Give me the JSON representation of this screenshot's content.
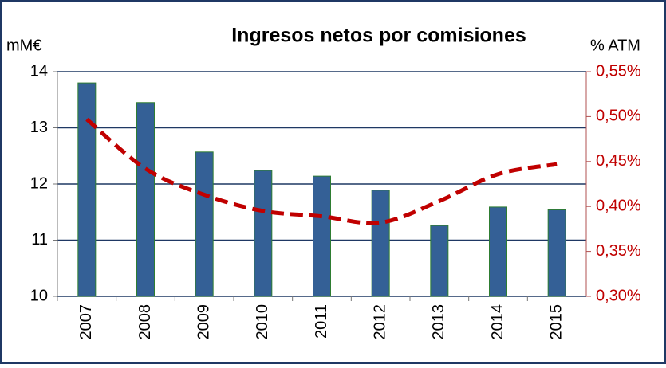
{
  "chart_data": {
    "type": "bar_line",
    "title": "Ingresos netos por comisiones",
    "y_label": "mM€",
    "y2_label": "% ATM",
    "categories": [
      "2007",
      "2008",
      "2009",
      "2010",
      "2011",
      "2012",
      "2013",
      "2014",
      "2015"
    ],
    "series": [
      {
        "name": "Ingresos netos por comisiones",
        "type": "bar",
        "color": "#346096",
        "values": [
          13.8,
          13.45,
          12.57,
          12.24,
          12.14,
          11.89,
          11.26,
          11.59,
          11.54
        ]
      },
      {
        "name": "% ATM",
        "type": "line",
        "axis": "y2",
        "color": "#c00000",
        "values": [
          0.497,
          0.442,
          0.413,
          0.395,
          0.389,
          0.382,
          0.406,
          0.436,
          0.447
        ]
      }
    ],
    "ylim": [
      10,
      14
    ],
    "yticks": [
      10,
      11,
      12,
      13,
      14
    ],
    "y2lim": [
      0.3,
      0.55
    ],
    "y2ticks": [
      {
        "value": 0.3,
        "label": "0,30%"
      },
      {
        "value": 0.35,
        "label": "0,35%"
      },
      {
        "value": 0.4,
        "label": "0,40%"
      },
      {
        "value": 0.45,
        "label": "0,45%"
      },
      {
        "value": 0.5,
        "label": "0,50%"
      },
      {
        "value": 0.55,
        "label": "0,55%"
      }
    ],
    "grid": true
  }
}
